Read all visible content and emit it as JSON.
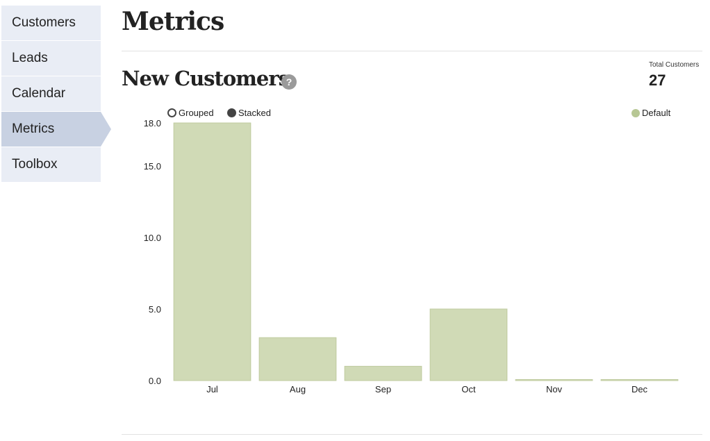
{
  "sidebar": {
    "items": [
      {
        "label": "Customers",
        "active": false
      },
      {
        "label": "Leads",
        "active": false
      },
      {
        "label": "Calendar",
        "active": false
      },
      {
        "label": "Metrics",
        "active": true
      },
      {
        "label": "Toolbox",
        "active": false
      }
    ]
  },
  "page": {
    "title": "Metrics"
  },
  "section": {
    "title": "New Customers",
    "help_icon": "?"
  },
  "summary": {
    "label": "Total Customers",
    "value": "27"
  },
  "chart_controls": {
    "grouped_label": "Grouped",
    "stacked_label": "Stacked",
    "selected": "Stacked"
  },
  "colors": {
    "bar_fill": "#d0dab6",
    "bar_stroke": "#bfcb9f",
    "legend": "#b7c794",
    "sidebar_active": "#c8d1e2"
  },
  "chart_data": {
    "type": "bar",
    "categories": [
      "Jul",
      "Aug",
      "Sep",
      "Oct",
      "Nov",
      "Dec"
    ],
    "series": [
      {
        "name": "Default",
        "values": [
          18,
          3,
          1,
          5,
          0,
          0
        ]
      }
    ],
    "yticks": [
      0.0,
      5.0,
      10.0,
      15.0,
      18.0
    ],
    "ytick_labels": [
      "0.0",
      "5.0",
      "10.0",
      "15.0",
      "18.0"
    ],
    "ylim": [
      0,
      18
    ],
    "grid": false,
    "legend": "top-right"
  }
}
